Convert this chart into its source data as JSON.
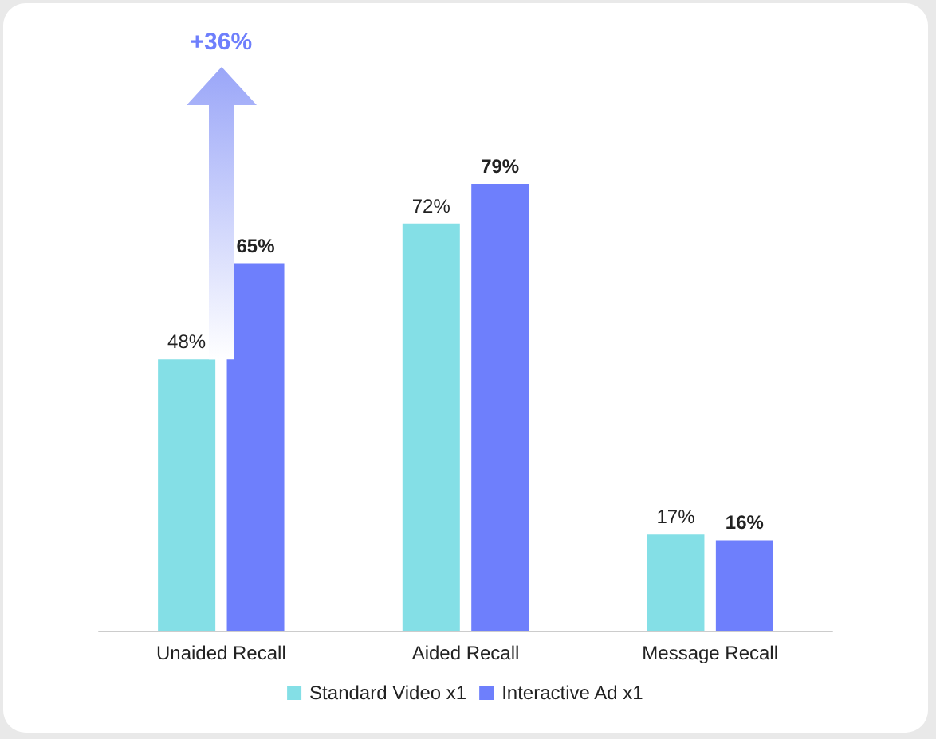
{
  "chart_data": {
    "type": "bar",
    "categories": [
      "Unaided Recall",
      "Aided Recall",
      "Message Recall"
    ],
    "series": [
      {
        "name": "Standard Video x1",
        "color": "#84dfe6",
        "values": [
          48,
          72,
          17
        ],
        "value_labels": [
          "48%",
          "72%",
          "17%"
        ]
      },
      {
        "name": "Interactive Ad x1",
        "color": "#6e7ffc",
        "values": [
          65,
          79,
          16
        ],
        "value_labels": [
          "65%",
          "79%",
          "16%"
        ]
      }
    ],
    "legend": "bottom",
    "annotations": [
      "+36%"
    ]
  }
}
